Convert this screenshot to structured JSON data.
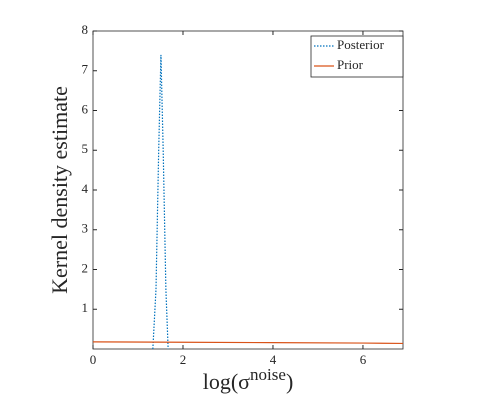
{
  "chart_data": {
    "type": "line",
    "y_label": "Kernel density estimate",
    "x_label": {
      "base": "log(σ",
      "sup": "noise",
      "end": ")"
    },
    "xlim": [
      0,
      6.89
    ],
    "xticks": [
      0,
      2,
      4,
      6
    ],
    "ylim": [
      0,
      8
    ],
    "yticks": [
      1,
      2,
      3,
      4,
      5,
      6,
      7,
      8
    ],
    "legend": "top-right",
    "series": [
      {
        "name": "Posterior",
        "color": "#0072bd",
        "style": "dotted",
        "x": [
          1.33,
          1.4,
          1.46,
          1.51,
          1.56,
          1.62,
          1.67
        ],
        "values": [
          0,
          1.5,
          5,
          7.4,
          5,
          1.5,
          0
        ]
      },
      {
        "name": "Prior",
        "color": "#d95319",
        "style": "solid",
        "x": [
          0,
          2,
          4,
          6,
          6.89
        ],
        "values": [
          0.18,
          0.17,
          0.16,
          0.15,
          0.14
        ]
      }
    ]
  }
}
